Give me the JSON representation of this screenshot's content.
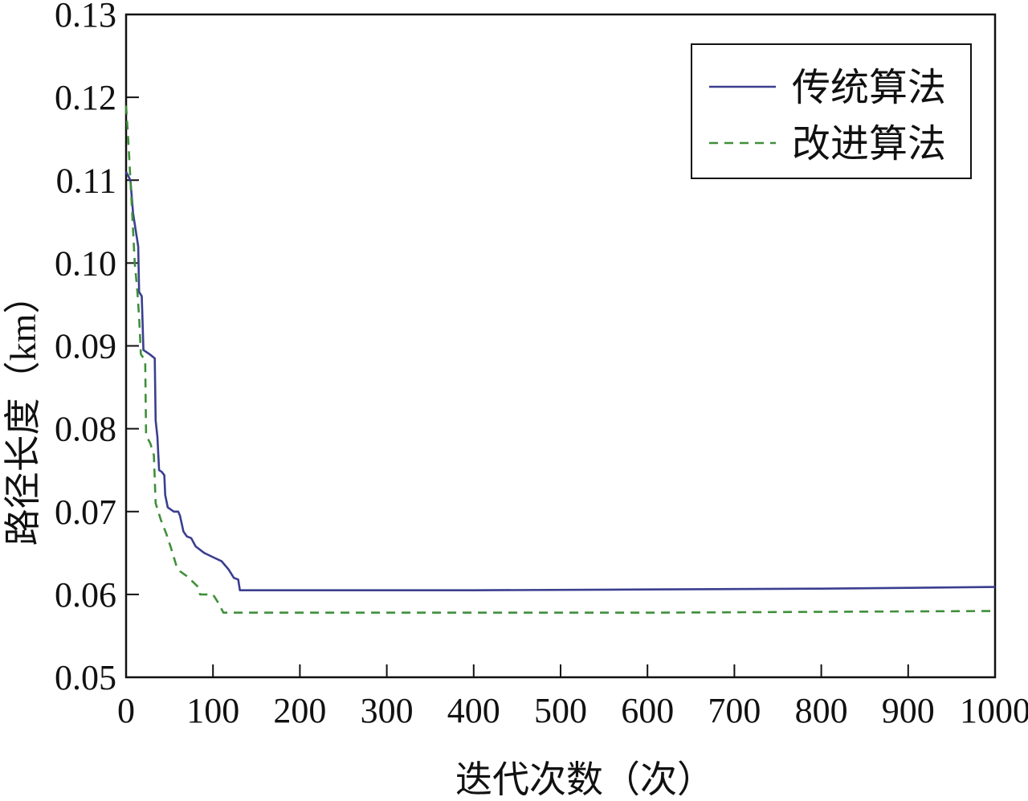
{
  "chart_data": {
    "type": "line",
    "title": "",
    "xlabel": "迭代次数（次）",
    "ylabel": "路径长度（km）",
    "xlim": [
      0,
      1000
    ],
    "ylim": [
      0.05,
      0.13
    ],
    "xticks": [
      0,
      100,
      200,
      300,
      400,
      500,
      600,
      700,
      800,
      900,
      1000
    ],
    "xtick_labels": [
      "0",
      "100",
      "200",
      "300",
      "400",
      "500",
      "600",
      "700",
      "800",
      "900",
      "1000"
    ],
    "yticks": [
      0.05,
      0.06,
      0.07,
      0.08,
      0.09,
      0.1,
      0.11,
      0.12,
      0.13
    ],
    "ytick_labels": [
      "0.05",
      "0.06",
      "0.07",
      "0.08",
      "0.09",
      "0.10",
      "0.11",
      "0.12",
      "0.13"
    ],
    "grid": false,
    "legend_position": "top-right",
    "series": [
      {
        "name": "传统算法",
        "color": "#3a3f8f",
        "style": "solid",
        "points": [
          [
            0,
            0.111
          ],
          [
            5,
            0.11
          ],
          [
            8,
            0.106
          ],
          [
            14,
            0.102
          ],
          [
            15,
            0.0965
          ],
          [
            18,
            0.096
          ],
          [
            20,
            0.0895
          ],
          [
            27,
            0.089
          ],
          [
            33,
            0.0885
          ],
          [
            34,
            0.081
          ],
          [
            36,
            0.079
          ],
          [
            38,
            0.075
          ],
          [
            41,
            0.0748
          ],
          [
            44,
            0.0744
          ],
          [
            45,
            0.072
          ],
          [
            48,
            0.0705
          ],
          [
            55,
            0.07
          ],
          [
            60,
            0.07
          ],
          [
            62,
            0.0695
          ],
          [
            66,
            0.0676
          ],
          [
            70,
            0.067
          ],
          [
            75,
            0.0668
          ],
          [
            80,
            0.0658
          ],
          [
            90,
            0.065
          ],
          [
            100,
            0.0645
          ],
          [
            110,
            0.064
          ],
          [
            118,
            0.063
          ],
          [
            124,
            0.062
          ],
          [
            129,
            0.0618
          ],
          [
            131,
            0.0605
          ],
          [
            200,
            0.0605
          ],
          [
            400,
            0.0605
          ],
          [
            600,
            0.0606
          ],
          [
            800,
            0.0607
          ],
          [
            1000,
            0.0609
          ]
        ]
      },
      {
        "name": "改进算法",
        "color": "#3f8f3a",
        "style": "dashed",
        "points": [
          [
            0,
            0.119
          ],
          [
            3,
            0.114
          ],
          [
            7,
            0.106
          ],
          [
            10,
            0.1
          ],
          [
            13,
            0.0965
          ],
          [
            15,
            0.0935
          ],
          [
            17,
            0.089
          ],
          [
            22,
            0.0882
          ],
          [
            23,
            0.0792
          ],
          [
            28,
            0.0782
          ],
          [
            32,
            0.0768
          ],
          [
            34,
            0.071
          ],
          [
            40,
            0.069
          ],
          [
            46,
            0.0674
          ],
          [
            52,
            0.0655
          ],
          [
            58,
            0.0634
          ],
          [
            62,
            0.0628
          ],
          [
            70,
            0.0622
          ],
          [
            75,
            0.0617
          ],
          [
            82,
            0.061
          ],
          [
            85,
            0.06
          ],
          [
            100,
            0.06
          ],
          [
            106,
            0.059
          ],
          [
            112,
            0.0578
          ],
          [
            200,
            0.0578
          ],
          [
            600,
            0.0578
          ],
          [
            1000,
            0.058
          ]
        ]
      }
    ]
  }
}
